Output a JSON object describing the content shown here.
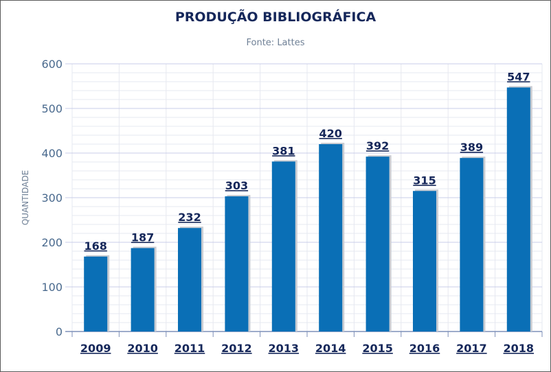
{
  "chart_data": {
    "type": "bar",
    "title": "PRODUÇÃO BIBLIOGRÁFICA",
    "subtitle": "Fonte: Lattes",
    "xlabel": "",
    "ylabel": "QUANTIDADE",
    "categories": [
      "2009",
      "2010",
      "2011",
      "2012",
      "2013",
      "2014",
      "2015",
      "2016",
      "2017",
      "2018"
    ],
    "values": [
      168,
      187,
      232,
      303,
      381,
      420,
      392,
      315,
      389,
      547
    ],
    "ylim": [
      0,
      600
    ],
    "yticks": [
      "0",
      "100",
      "200",
      "300",
      "400",
      "500",
      "600"
    ],
    "grid": true,
    "legend": "none"
  },
  "colors": {
    "bar": "#0a6fb6",
    "bar_shadow": "#c9ccd2",
    "title": "#15275a",
    "data_label": "#15275a",
    "tick_label": "#4a6a8e",
    "subtitle": "#6f8096",
    "grid_major": "#c8cce8",
    "grid_minor": "#e6e8f0",
    "axis": "#7d8fb8"
  }
}
